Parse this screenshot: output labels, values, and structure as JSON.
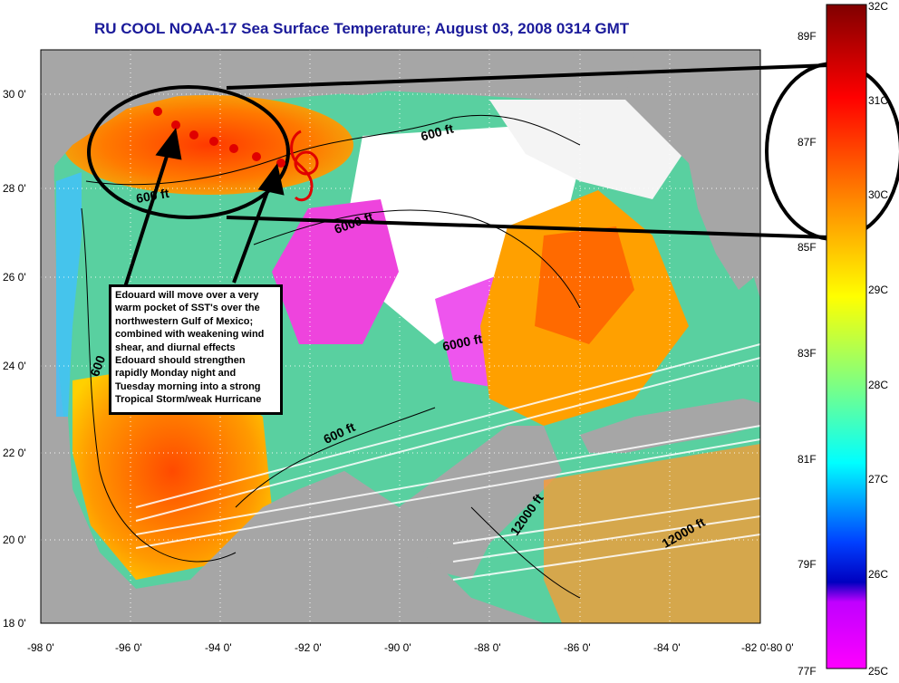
{
  "title": "RU COOL  NOAA-17  Sea Surface Temperature;  August 03, 2008 0314 GMT",
  "y_axis_labels": [
    "30 0'",
    "28 0'",
    "26 0'",
    "24 0'",
    "22 0'",
    "20 0'",
    "18 0'"
  ],
  "x_axis_labels": [
    "-98 0'",
    "-96 0'",
    "-94 0'",
    "-92 0'",
    "-90 0'",
    "-88 0'",
    "-86 0'",
    "-84 0'",
    "-82 0'",
    "-80 0'"
  ],
  "contour_labels": [
    "600 ft",
    "600 ft",
    "6000 ft",
    "6000 ft",
    "600 ft",
    "600",
    "12000 ft",
    "12000 ft"
  ],
  "annotation": {
    "lines": [
      "Edouard will move over a very",
      "warm pocket of SST's over the",
      "northwestern Gulf of Mexico;",
      "combined with weakening wind",
      "shear, and diurnal effects",
      "Edouard should strengthen",
      "rapidly Monday night and",
      "Tuesday morning into a strong",
      "Tropical Storm/weak Hurricane"
    ]
  },
  "colorbar": {
    "celsius_labels": [
      "32C",
      "31C",
      "30C",
      "29C",
      "28C",
      "27C",
      "26C",
      "25C"
    ],
    "fahrenheit_labels": [
      "89F",
      "87F",
      "85F",
      "83F",
      "81F",
      "79F",
      "77F"
    ]
  },
  "colors": {
    "title": "#1a1a9a",
    "land": "#a6a6a6",
    "track_dots": "#e00000",
    "annotation_border": "#000000"
  }
}
